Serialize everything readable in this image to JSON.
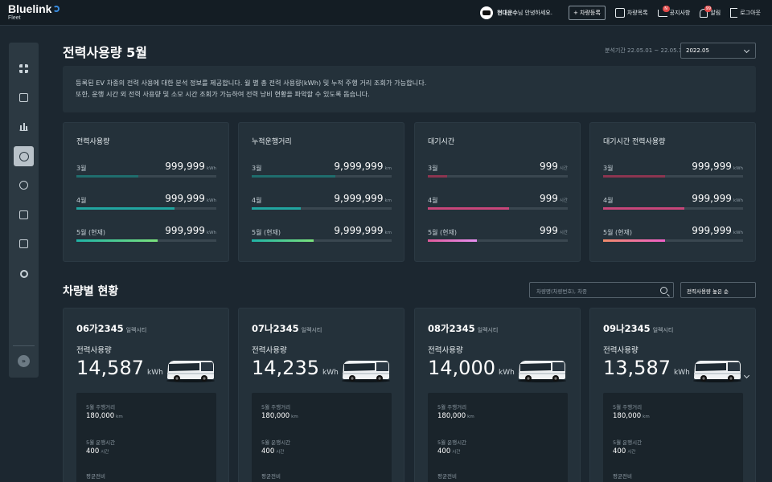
{
  "header": {
    "logo_name": "Bluelink",
    "logo_sub": "Fleet",
    "greet_name": "현대운수",
    "greet_suffix": "님 안녕하세요.",
    "register_btn": "+ 차량등록",
    "items": [
      {
        "label": "차량목록",
        "icon": "clipboard-icon",
        "badge": ""
      },
      {
        "label": "공지사항",
        "icon": "cart-icon",
        "badge": "N"
      },
      {
        "label": "알림",
        "icon": "bell-icon",
        "badge": "99"
      },
      {
        "label": "로그아웃",
        "icon": "logout-icon",
        "badge": ""
      }
    ]
  },
  "sidebar": {
    "icons": [
      "grid-icon",
      "bus-icon",
      "bar-chart-icon",
      "gauge-icon",
      "location-icon",
      "document-icon",
      "download-icon",
      "gear-icon"
    ],
    "active_index": 3,
    "expand": "»"
  },
  "page": {
    "title": "전력사용량 5월",
    "period_label": "분석기간",
    "period_value": "22.05.01 ~ 22.05.14",
    "month_select": "2022.05",
    "description": [
      "등록된 EV 차종의 전력 사용에 대한 분석 정보를 제공합니다. 월 별 총 전력 사용량(kWh) 및 누적 주행 거리 조회가 가능합니다.",
      "또한, 운행 시간 외 전력 사용량 및 소모 시간 조회가 가능하여 전력 낭비 현황을 파악할 수 있도록 돕습니다."
    ]
  },
  "summary": [
    {
      "title": "전력사용량",
      "rows": [
        {
          "label": "3월",
          "value": "999,999",
          "unit": "kWh",
          "fill": 0.44,
          "color": "#1f6d6d"
        },
        {
          "label": "4월",
          "value": "999,999",
          "unit": "kWh",
          "fill": 0.7,
          "color": "#21a5a0"
        },
        {
          "label": "5월 (현재)",
          "value": "999,999",
          "unit": "kWh",
          "fill": 0.58,
          "color": "linear-gradient(90deg,#20b3a6,#7be37d)"
        }
      ]
    },
    {
      "title": "누적운행거리",
      "rows": [
        {
          "label": "3월",
          "value": "9,999,999",
          "unit": "km",
          "fill": 0.6,
          "color": "#1f6d6d"
        },
        {
          "label": "4월",
          "value": "9,999,999",
          "unit": "km",
          "fill": 0.35,
          "color": "#21a5a0"
        },
        {
          "label": "5월 (현재)",
          "value": "9,999,999",
          "unit": "km",
          "fill": 0.44,
          "color": "linear-gradient(90deg,#20b3a6,#7be37d)"
        }
      ]
    },
    {
      "title": "대기시간",
      "rows": [
        {
          "label": "3월",
          "value": "999",
          "unit": "시간",
          "fill": 0.14,
          "color": "#8c3550"
        },
        {
          "label": "4월",
          "value": "999",
          "unit": "시간",
          "fill": 0.58,
          "color": "#c8467a"
        },
        {
          "label": "5월 (현재)",
          "value": "999",
          "unit": "시간",
          "fill": 0.35,
          "color": "linear-gradient(90deg,#e05a9a,#e78ff0)"
        }
      ]
    },
    {
      "title": "대기시간 전력사용량",
      "rows": [
        {
          "label": "3월",
          "value": "999,999",
          "unit": "kWh",
          "fill": 0.44,
          "color": "#8c3550"
        },
        {
          "label": "4월",
          "value": "999,999",
          "unit": "kWh",
          "fill": 0.58,
          "color": "#c8467a"
        },
        {
          "label": "5월 (현재)",
          "value": "999,999",
          "unit": "kWh",
          "fill": 0.44,
          "color": "linear-gradient(90deg,#f08a6a,#f060c8)"
        }
      ]
    }
  ],
  "vehicles_section": {
    "title": "차량별 현황",
    "search_placeholder": "차량명(차량번호), 차종",
    "sort": "전력사용량 높은 순"
  },
  "vehicles": [
    {
      "plate": "06가2345",
      "model": "일렉시티",
      "usage_label": "전력사용량",
      "usage": "14,587",
      "unit": "kWh",
      "stats": [
        {
          "label": "5월 주행거리",
          "value": "180,000",
          "unit": "km"
        },
        {
          "label": "5월 운행시간",
          "value": "400",
          "unit": "시간"
        },
        {
          "label": "평균전비",
          "value": "",
          "unit": ""
        }
      ]
    },
    {
      "plate": "07나2345",
      "model": "일렉시티",
      "usage_label": "전력사용량",
      "usage": "14,235",
      "unit": "kWh",
      "stats": [
        {
          "label": "5월 주행거리",
          "value": "180,000",
          "unit": "km"
        },
        {
          "label": "5월 운행시간",
          "value": "400",
          "unit": "시간"
        },
        {
          "label": "평균전비",
          "value": "",
          "unit": ""
        }
      ]
    },
    {
      "plate": "08가2345",
      "model": "일렉시티",
      "usage_label": "전력사용량",
      "usage": "14,000",
      "unit": "kWh",
      "stats": [
        {
          "label": "5월 주행거리",
          "value": "180,000",
          "unit": "km"
        },
        {
          "label": "5월 운행시간",
          "value": "400",
          "unit": "시간"
        },
        {
          "label": "평균전비",
          "value": "",
          "unit": ""
        }
      ]
    },
    {
      "plate": "09나2345",
      "model": "일렉시티",
      "usage_label": "전력사용량",
      "usage": "13,587",
      "unit": "kWh",
      "stats": [
        {
          "label": "5월 주행거리",
          "value": "180,000",
          "unit": "km"
        },
        {
          "label": "5월 운행시간",
          "value": "400",
          "unit": "시간"
        },
        {
          "label": "평균전비",
          "value": "",
          "unit": ""
        }
      ]
    }
  ]
}
